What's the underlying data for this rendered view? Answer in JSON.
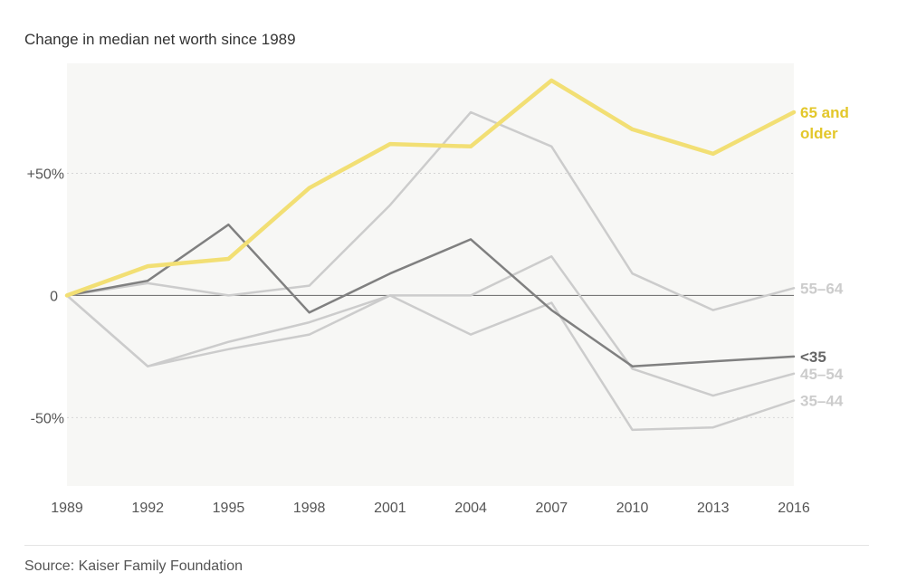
{
  "subtitle": "Change in median net worth since 1989",
  "source": "Source: Kaiser Family Foundation",
  "chart_data": {
    "type": "line",
    "title": "Change in median net worth since 1989",
    "x": [
      1989,
      1992,
      1995,
      1998,
      2001,
      2004,
      2007,
      2010,
      2013,
      2016
    ],
    "xticks": [
      "1989",
      "1992",
      "1995",
      "1998",
      "2001",
      "2004",
      "2007",
      "2010",
      "2013",
      "2016"
    ],
    "ylim": [
      -78,
      95
    ],
    "yticks": [
      {
        "value": 50,
        "label": "+50%"
      },
      {
        "value": 0,
        "label": "0"
      },
      {
        "value": -50,
        "label": "-50%"
      }
    ],
    "series": [
      {
        "name": "35–44",
        "label_lines": [
          "35–44"
        ],
        "color": "#cccccc",
        "label_color": "#cccccc",
        "stroke_width": 2.5,
        "values": [
          0,
          -29,
          -22,
          -16,
          0,
          -16,
          -3,
          -55,
          -54,
          -43
        ]
      },
      {
        "name": "45–54",
        "label_lines": [
          "45–54"
        ],
        "color": "#cccccc",
        "label_color": "#cccccc",
        "stroke_width": 2.5,
        "values": [
          0,
          -29,
          -19,
          -11,
          0,
          0,
          16,
          -30,
          -41,
          -32
        ]
      },
      {
        "name": "55–64",
        "label_lines": [
          "55–64"
        ],
        "color": "#cccccc",
        "label_color": "#cccccc",
        "stroke_width": 2.5,
        "values": [
          0,
          5,
          0,
          4,
          37,
          75,
          61,
          9,
          -6,
          3
        ]
      },
      {
        "name": "<35",
        "label_lines": [
          "<35"
        ],
        "color": "#808080",
        "label_color": "#666666",
        "stroke_width": 2.5,
        "values": [
          0,
          6,
          29,
          -7,
          9,
          23,
          -6,
          -29,
          -27,
          -25
        ]
      },
      {
        "name": "65 and older",
        "label_lines": [
          "65 and",
          "older"
        ],
        "color": "#f2df74",
        "label_color": "#e3c72a",
        "stroke_width": 4.5,
        "values": [
          0,
          12,
          15,
          44,
          62,
          61,
          88,
          68,
          58,
          75
        ]
      }
    ]
  }
}
